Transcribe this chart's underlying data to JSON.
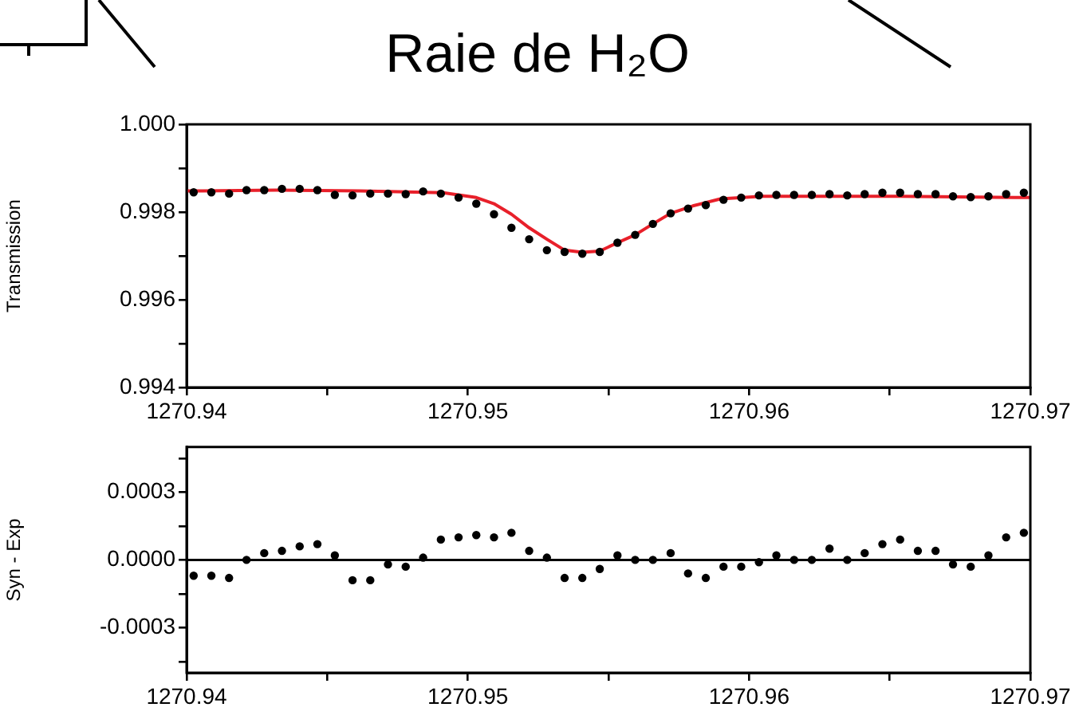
{
  "chart_data": [
    {
      "type": "scatter",
      "title": "Raie de H₂O",
      "ylabel": "Transmission",
      "grid": false,
      "xlim": [
        1270.94,
        1270.97
      ],
      "xticks": [
        {
          "value": 1270.94,
          "label": "1270.94"
        },
        {
          "value": 1270.945,
          "label": null
        },
        {
          "value": 1270.95,
          "label": "1270.95"
        },
        {
          "value": 1270.955,
          "label": null
        },
        {
          "value": 1270.96,
          "label": "1270.96"
        },
        {
          "value": 1270.965,
          "label": null
        },
        {
          "value": 1270.97,
          "label": "1270.97"
        }
      ],
      "ylim": [
        0.994,
        1.0
      ],
      "yticks": [
        {
          "value": 0.994,
          "label": "0.994"
        },
        {
          "value": 0.995,
          "label": null
        },
        {
          "value": 0.996,
          "label": "0.996"
        },
        {
          "value": 0.997,
          "label": null
        },
        {
          "value": 0.998,
          "label": "0.998"
        },
        {
          "value": 0.999,
          "label": null
        },
        {
          "value": 1.0,
          "label": "1.000"
        }
      ],
      "series": [
        {
          "type": "line",
          "marker": "none",
          "color": "#e8202a",
          "x": [
            1270.94,
            1270.9432,
            1270.94616,
            1270.94912,
            1270.9503,
            1270.95093,
            1270.95155,
            1270.95218,
            1270.95281,
            1270.95344,
            1270.95407,
            1270.95469,
            1270.95532,
            1270.95595,
            1270.95658,
            1270.95721,
            1270.958,
            1270.95898,
            1270.96046,
            1270.96539,
            1270.97
          ],
          "values": [
            0.99848,
            0.9985,
            0.99848,
            0.99844,
            0.99833,
            0.99819,
            0.99795,
            0.99764,
            0.99738,
            0.99713,
            0.99708,
            0.99711,
            0.9973,
            0.99748,
            0.99773,
            0.99797,
            0.99814,
            0.9983,
            0.99836,
            0.99836,
            0.99833
          ]
        },
        {
          "marker": "circle",
          "color": "#000000",
          "x": [
            1270.94025,
            1270.94088,
            1270.94151,
            1270.94213,
            1270.94276,
            1270.94339,
            1270.94402,
            1270.94465,
            1270.94527,
            1270.9459,
            1270.94653,
            1270.94716,
            1270.94779,
            1270.94841,
            1270.94904,
            1270.94967,
            1270.9503,
            1270.95093,
            1270.95155,
            1270.95218,
            1270.95281,
            1270.95344,
            1270.95407,
            1270.95469,
            1270.95532,
            1270.95595,
            1270.95658,
            1270.95721,
            1270.95783,
            1270.95846,
            1270.95909,
            1270.95972,
            1270.96035,
            1270.96097,
            1270.9616,
            1270.96223,
            1270.96286,
            1270.96349,
            1270.96411,
            1270.96474,
            1270.96537,
            1270.966,
            1270.96663,
            1270.96725,
            1270.96788,
            1270.96851,
            1270.96914,
            1270.96977
          ],
          "values": [
            0.99845,
            0.99845,
            0.99842,
            0.9985,
            0.9985,
            0.99853,
            0.99853,
            0.9985,
            0.99839,
            0.99838,
            0.99842,
            0.99842,
            0.99841,
            0.99847,
            0.99842,
            0.99833,
            0.99819,
            0.99795,
            0.99764,
            0.99738,
            0.99713,
            0.99709,
            0.99705,
            0.99709,
            0.9973,
            0.99748,
            0.99773,
            0.99797,
            0.99808,
            0.99816,
            0.99828,
            0.99833,
            0.99838,
            0.99839,
            0.99839,
            0.99839,
            0.99841,
            0.99838,
            0.99841,
            0.99844,
            0.99844,
            0.99841,
            0.99841,
            0.99836,
            0.99834,
            0.99836,
            0.99841,
            0.99844
          ]
        }
      ]
    },
    {
      "type": "scatter",
      "ylabel": "Syn - Exp",
      "grid": false,
      "xlim": [
        1270.94,
        1270.97
      ],
      "xticks": [
        {
          "value": 1270.94,
          "label": "1270.94"
        },
        {
          "value": 1270.945,
          "label": null
        },
        {
          "value": 1270.95,
          "label": "1270.95"
        },
        {
          "value": 1270.955,
          "label": null
        },
        {
          "value": 1270.96,
          "label": "1270.96"
        },
        {
          "value": 1270.965,
          "label": null
        },
        {
          "value": 1270.97,
          "label": "1270.97"
        }
      ],
      "ylim": [
        -0.0005,
        0.0005
      ],
      "yticks": [
        {
          "value": -0.00045,
          "label": null
        },
        {
          "value": -0.0003,
          "label": "-0.0003"
        },
        {
          "value": -0.00015,
          "label": null
        },
        {
          "value": 0,
          "label": "0.0000"
        },
        {
          "value": 0.00015,
          "label": null
        },
        {
          "value": 0.0003,
          "label": "0.0003"
        },
        {
          "value": 0.00045,
          "label": null
        }
      ],
      "ref_lines": [
        {
          "axis": "y",
          "value": 0,
          "color": "#000000"
        }
      ],
      "series": [
        {
          "marker": "circle",
          "color": "#000000",
          "x": [
            1270.94025,
            1270.94088,
            1270.94151,
            1270.94213,
            1270.94276,
            1270.94339,
            1270.94402,
            1270.94465,
            1270.94527,
            1270.9459,
            1270.94653,
            1270.94716,
            1270.94779,
            1270.94841,
            1270.94904,
            1270.94967,
            1270.9503,
            1270.95093,
            1270.95155,
            1270.95218,
            1270.95281,
            1270.95344,
            1270.95407,
            1270.95469,
            1270.95532,
            1270.95595,
            1270.95658,
            1270.95721,
            1270.95783,
            1270.95846,
            1270.95909,
            1270.95972,
            1270.96035,
            1270.96097,
            1270.9616,
            1270.96223,
            1270.96286,
            1270.96349,
            1270.96411,
            1270.96474,
            1270.96537,
            1270.966,
            1270.96663,
            1270.96725,
            1270.96788,
            1270.96851,
            1270.96914,
            1270.96977
          ],
          "values": [
            -7e-05,
            -7e-05,
            -8e-05,
            0,
            3e-05,
            4e-05,
            6e-05,
            7e-05,
            2e-05,
            -9e-05,
            -9e-05,
            -2e-05,
            -3e-05,
            1e-05,
            9e-05,
            0.0001,
            0.00011,
            0.0001,
            0.00012,
            4e-05,
            1e-05,
            -8e-05,
            -8e-05,
            -4e-05,
            2e-05,
            0,
            0,
            3e-05,
            -6e-05,
            -8e-05,
            -3e-05,
            -3e-05,
            -1e-05,
            2e-05,
            0,
            0,
            5e-05,
            0,
            3e-05,
            7e-05,
            9e-05,
            4e-05,
            4e-05,
            -2e-05,
            -3e-05,
            2e-05,
            0.0001,
            0.00012
          ]
        }
      ]
    }
  ]
}
